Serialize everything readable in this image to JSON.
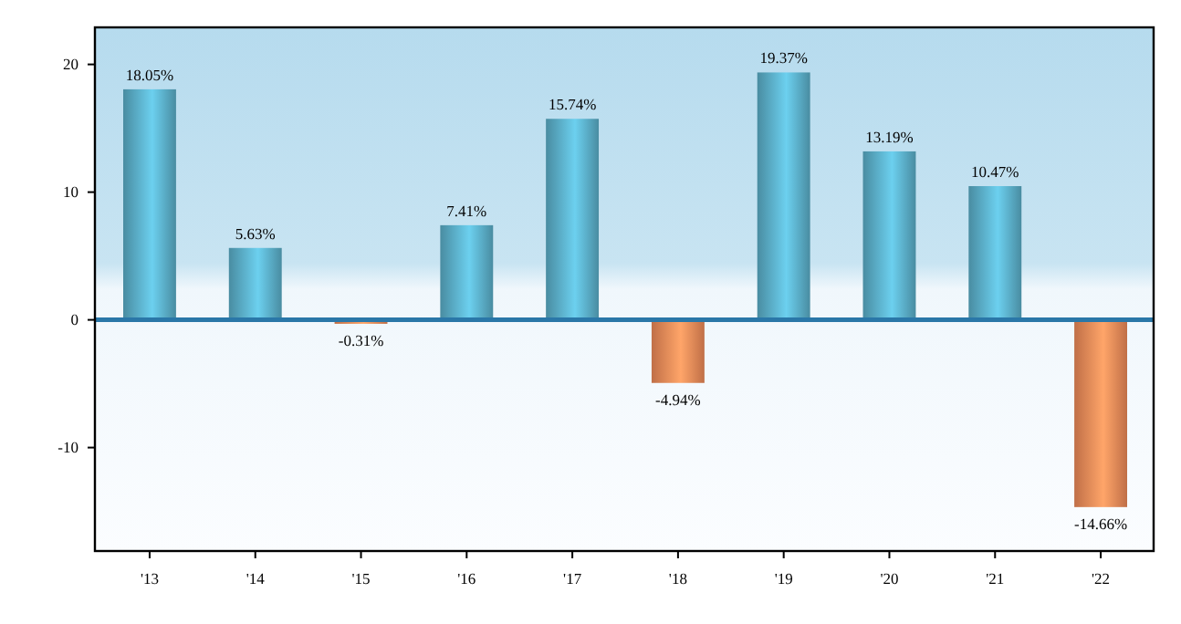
{
  "chart_data": {
    "type": "bar",
    "categories": [
      "'13",
      "'14",
      "'15",
      "'16",
      "'17",
      "'18",
      "'19",
      "'20",
      "'21",
      "'22"
    ],
    "values": [
      18.05,
      5.63,
      -0.31,
      7.41,
      15.74,
      -4.94,
      19.37,
      13.19,
      10.47,
      -14.66
    ],
    "colors": [
      "#5aaec8",
      "#5aaec8",
      "#ee8a58",
      "#5aaec8",
      "#5aaec8",
      "#ee8a58",
      "#5aaec8",
      "#5aaec8",
      "#5aaec8",
      "#ee8a58"
    ],
    "value_labels": [
      "18.05%",
      "5.63%",
      "-0.31%",
      "7.41%",
      "15.74%",
      "-4.94%",
      "19.37%",
      "13.19%",
      "10.47%",
      "-14.66%"
    ],
    "ylim": [
      -18.1,
      22.9
    ],
    "yticks": [
      -10,
      0,
      10,
      20
    ],
    "grid": false,
    "ref_lines": [
      {
        "axis": "y",
        "value": 0,
        "color": "#2a77a8"
      }
    ]
  }
}
